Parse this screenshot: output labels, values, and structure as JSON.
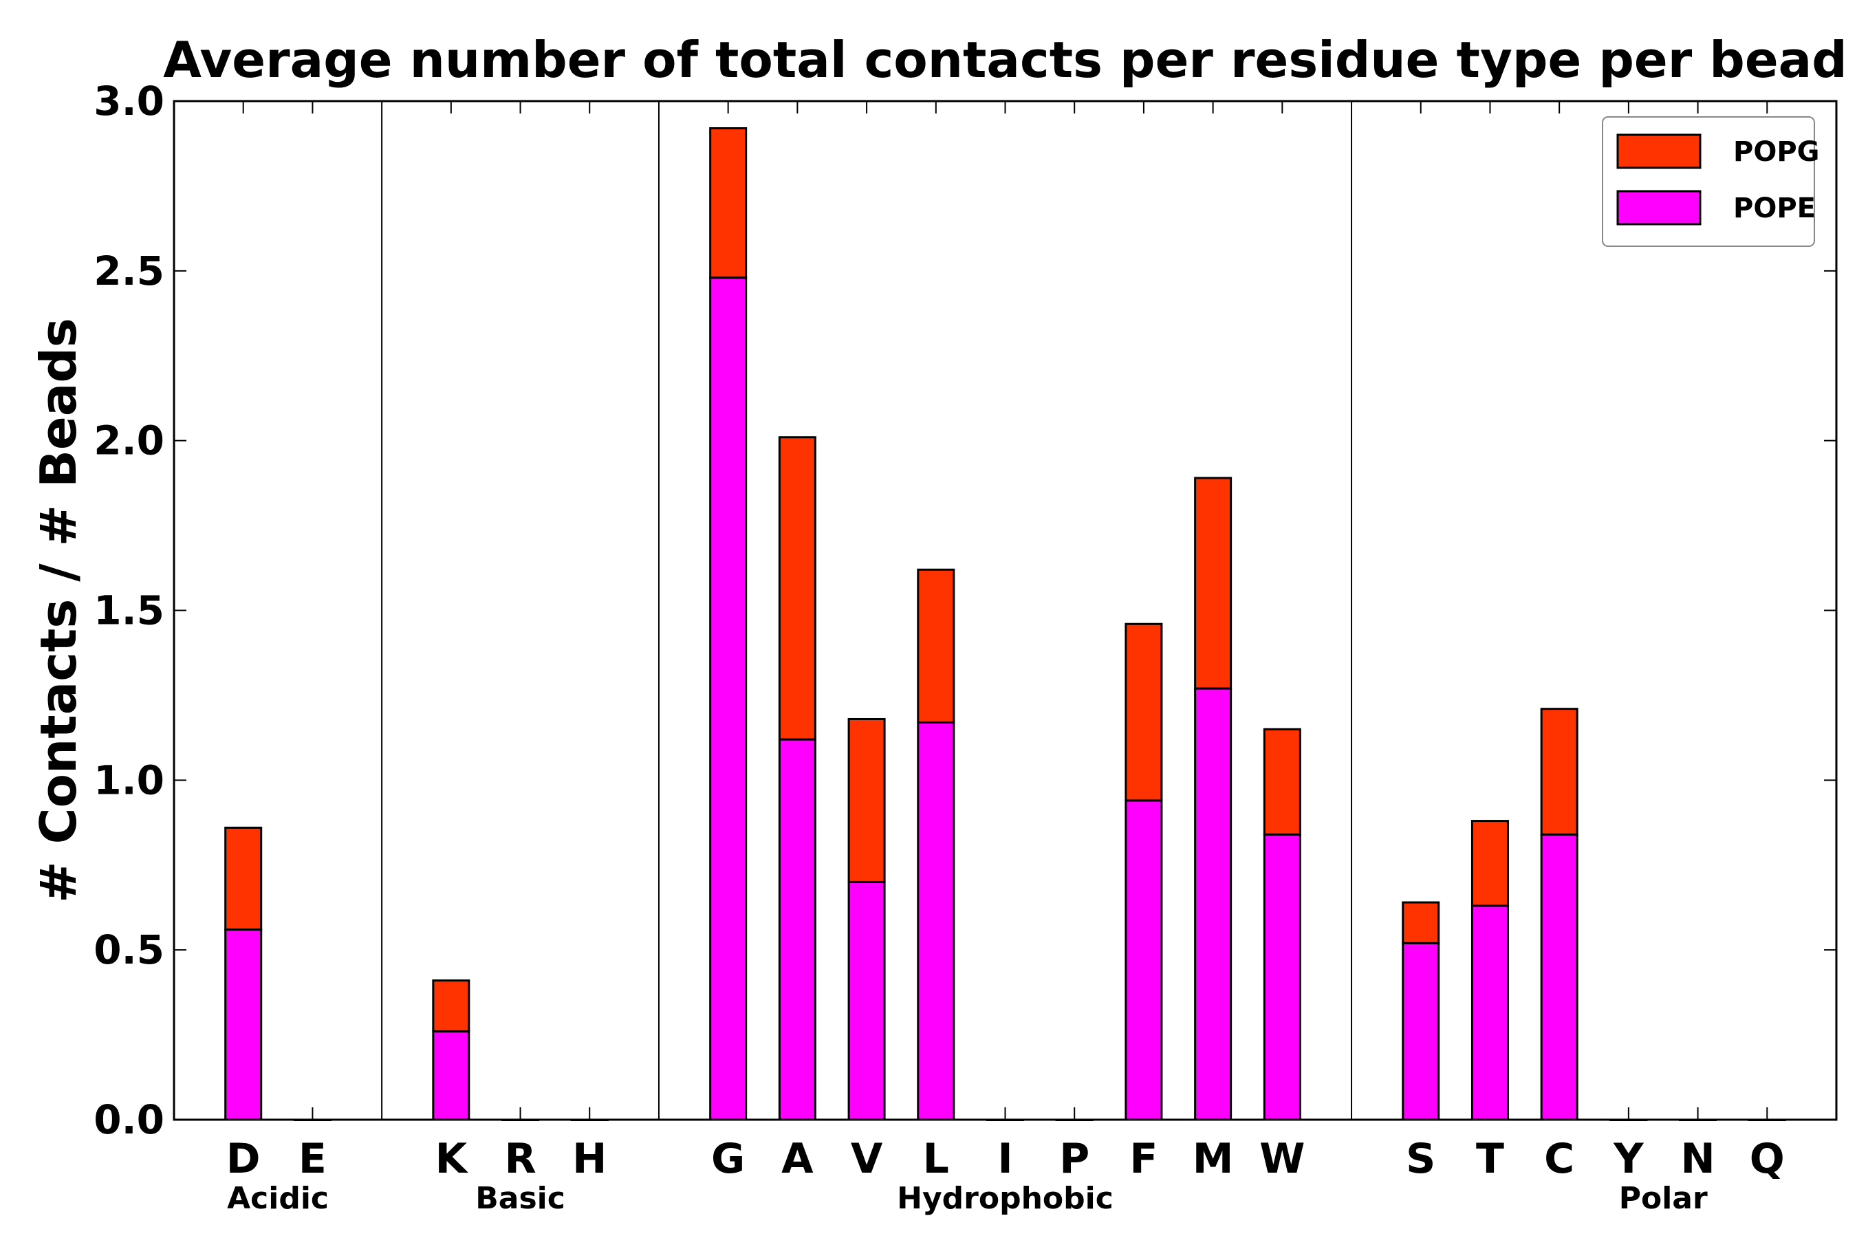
{
  "chart_data": {
    "type": "bar",
    "stacked": true,
    "title": "Average number of total contacts per residue type per bead",
    "xlabel": "",
    "ylabel": "# Contacts / # Beads",
    "ylim": [
      0,
      3.0
    ],
    "yticks": [
      "0.0",
      "0.5",
      "1.0",
      "1.5",
      "2.0",
      "2.5",
      "3.0"
    ],
    "grid": false,
    "legend_position": "top-right",
    "categories": [
      "D",
      "E",
      "K",
      "R",
      "H",
      "G",
      "A",
      "V",
      "L",
      "I",
      "P",
      "F",
      "M",
      "W",
      "S",
      "T",
      "C",
      "Y",
      "N",
      "Q"
    ],
    "slots": [
      1,
      2,
      4,
      5,
      6,
      8,
      9,
      10,
      11,
      12,
      13,
      14,
      15,
      16,
      18,
      19,
      20,
      21,
      22,
      23
    ],
    "separator_slots": [
      3,
      7,
      17
    ],
    "groups": [
      {
        "label": "Acidic",
        "center_slot": 1.5
      },
      {
        "label": "Basic",
        "center_slot": 5.0
      },
      {
        "label": "Hydrophobic",
        "center_slot": 12.0
      },
      {
        "label": "Polar",
        "center_slot": 21.5
      }
    ],
    "series": [
      {
        "name": "POPE",
        "color": "#ff00ff",
        "values": [
          0.56,
          0,
          0.26,
          0,
          0,
          2.48,
          1.12,
          0.7,
          1.17,
          0,
          0,
          0.94,
          1.27,
          0.84,
          0.52,
          0.63,
          0.84,
          0,
          0,
          0
        ]
      },
      {
        "name": "POPG",
        "color": "#ff3300",
        "values": [
          0.3,
          0,
          0.15,
          0,
          0,
          0.44,
          0.89,
          0.48,
          0.45,
          0,
          0,
          0.52,
          0.62,
          0.31,
          0.12,
          0.25,
          0.37,
          0,
          0,
          0
        ]
      }
    ]
  }
}
